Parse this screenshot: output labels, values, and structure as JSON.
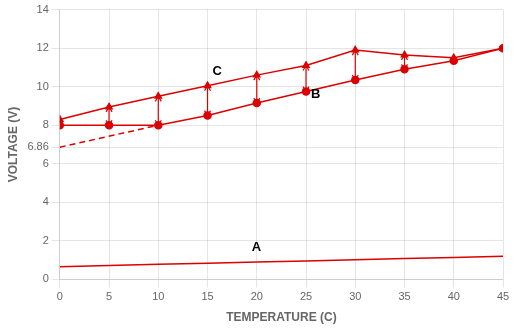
{
  "chart_data": {
    "type": "line",
    "xlabel": "TEMPERATURE (C)",
    "ylabel": "VOLTAGE (V)",
    "xlim": [
      0,
      45
    ],
    "ylim": [
      0,
      14
    ],
    "xticks": [
      0,
      5,
      10,
      15,
      20,
      25,
      30,
      35,
      40,
      45
    ],
    "yticks": [
      0,
      2,
      4,
      6,
      6.86,
      8,
      10,
      12,
      14
    ],
    "grid": true,
    "series": [
      {
        "color": "#dd0000",
        "marker": "triangle",
        "line_style": "solid",
        "x": [
          0,
          5,
          10,
          15,
          20,
          25,
          30,
          35,
          40,
          45
        ],
        "values": [
          8.3,
          8.95,
          9.5,
          10.05,
          10.6,
          11.1,
          11.9,
          11.65,
          11.5,
          12.0
        ]
      },
      {
        "color": "#dd0000",
        "marker": "circle",
        "line_style": "solid",
        "x": [
          0,
          5,
          10,
          15,
          20,
          25,
          30,
          35,
          40,
          45
        ],
        "values": [
          8.0,
          8.0,
          8.0,
          8.5,
          9.15,
          9.75,
          10.35,
          10.9,
          11.35,
          12.0
        ]
      },
      {
        "color": "#dd0000",
        "marker": "none",
        "line_style": "solid",
        "x": [
          0,
          5,
          10,
          15,
          20,
          25,
          30,
          35,
          40,
          45
        ],
        "values": [
          0.65,
          0.72,
          0.78,
          0.84,
          0.9,
          0.96,
          1.02,
          1.08,
          1.14,
          1.2
        ]
      },
      {
        "color": "#dd0000",
        "marker": "none",
        "line_style": "dashed",
        "x": [
          0,
          10
        ],
        "values": [
          6.86,
          8.0
        ]
      }
    ],
    "double_arrows": [
      {
        "x": 5,
        "y": [
          8.0,
          8.95
        ]
      },
      {
        "x": 10,
        "y": [
          8.0,
          9.5
        ]
      },
      {
        "x": 15,
        "y": [
          8.5,
          10.05
        ]
      },
      {
        "x": 20,
        "y": [
          9.15,
          10.6
        ]
      },
      {
        "x": 25,
        "y": [
          9.75,
          11.1
        ]
      },
      {
        "x": 30,
        "y": [
          10.35,
          11.9
        ]
      },
      {
        "x": 35,
        "y": [
          10.9,
          11.65
        ]
      }
    ],
    "arrow_color": "#dd0000",
    "annotations": [
      {
        "text": "C",
        "x": 15.5,
        "y": 10.6
      },
      {
        "text": "B",
        "x": 25.5,
        "y": 9.4
      },
      {
        "text": "A",
        "x": 19.5,
        "y": 1.45
      }
    ]
  }
}
